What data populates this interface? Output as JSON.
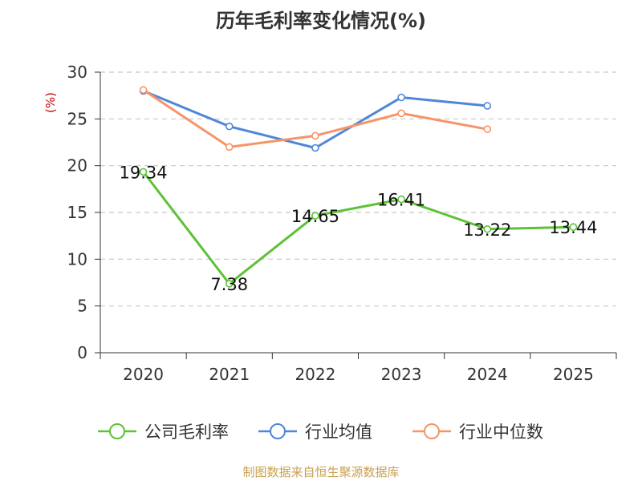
{
  "title": "历年毛利率变化情况(%)",
  "source": "制图数据来自恒生聚源数据库",
  "chart_data": {
    "type": "line",
    "title": "历年毛利率变化情况(%)",
    "ylabel": "(%)",
    "ylim": [
      0,
      30
    ],
    "yticks": [
      0,
      5,
      10,
      15,
      20,
      25,
      30
    ],
    "categories": [
      "2020",
      "2021",
      "2022",
      "2023",
      "2024",
      "2025"
    ],
    "grid": true,
    "legend_position": "bottom",
    "series": [
      {
        "name": "公司毛利率",
        "color": "#5cc236",
        "show_labels": true,
        "values": [
          19.34,
          7.38,
          14.65,
          16.41,
          13.22,
          13.44
        ]
      },
      {
        "name": "行业均值",
        "color": "#4f86d9",
        "show_labels": false,
        "values": [
          28.0,
          24.2,
          21.9,
          27.3,
          26.4,
          null
        ]
      },
      {
        "name": "行业中位数",
        "color": "#f79467",
        "show_labels": false,
        "values": [
          28.1,
          22.0,
          23.2,
          25.6,
          23.9,
          null
        ]
      }
    ],
    "value_labels": [
      "19.34",
      "7.38",
      "14.65",
      "16.41",
      "13.22",
      "13.44"
    ]
  }
}
